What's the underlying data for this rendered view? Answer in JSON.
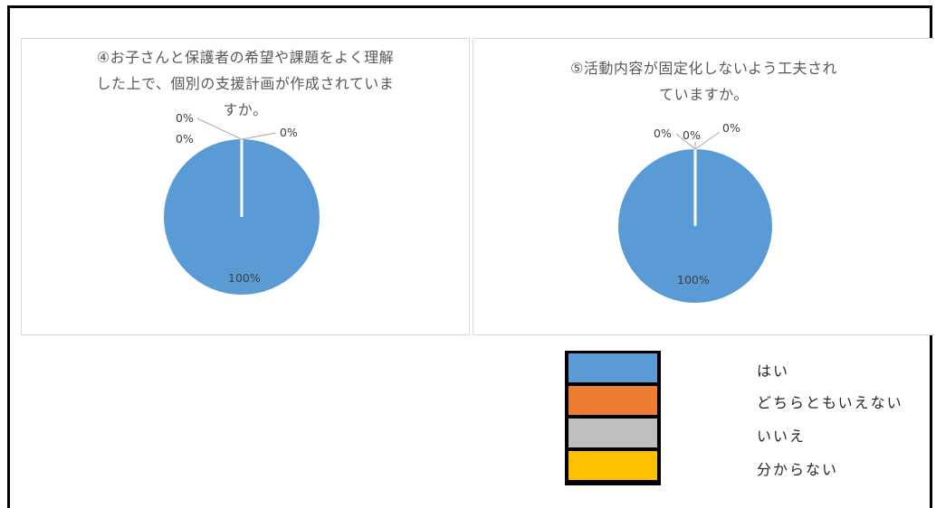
{
  "colors": {
    "yes": "#5b9bd5",
    "neither": "#ed7d31",
    "no": "#bfbfbf",
    "unknown": "#ffc000"
  },
  "legend": {
    "items": [
      {
        "label": "はい",
        "color": "#5b9bd5"
      },
      {
        "label": "どちらともいえない",
        "color": "#ed7d31"
      },
      {
        "label": "いいえ",
        "color": "#bfbfbf"
      },
      {
        "label": "分からない",
        "color": "#ffc000"
      }
    ]
  },
  "chart_data": [
    {
      "type": "pie",
      "title_lines": [
        "④お子さんと保護者の希望や課題をよく理解",
        "した上で、個別の支援計画が作成されていま",
        "すか。"
      ],
      "categories": [
        "はい",
        "どちらともいえない",
        "いいえ",
        "分からない"
      ],
      "values": [
        100,
        0,
        0,
        0
      ],
      "data_labels": [
        "100%",
        "0%",
        "0%",
        "0%"
      ]
    },
    {
      "type": "pie",
      "title_lines": [
        "⑤活動内容が固定化しないよう工夫され",
        "ていますか。"
      ],
      "categories": [
        "はい",
        "どちらともいえない",
        "いいえ",
        "分からない"
      ],
      "values": [
        100,
        0,
        0,
        0
      ],
      "data_labels": [
        "100%",
        "0%",
        "0%",
        "0%"
      ]
    }
  ]
}
